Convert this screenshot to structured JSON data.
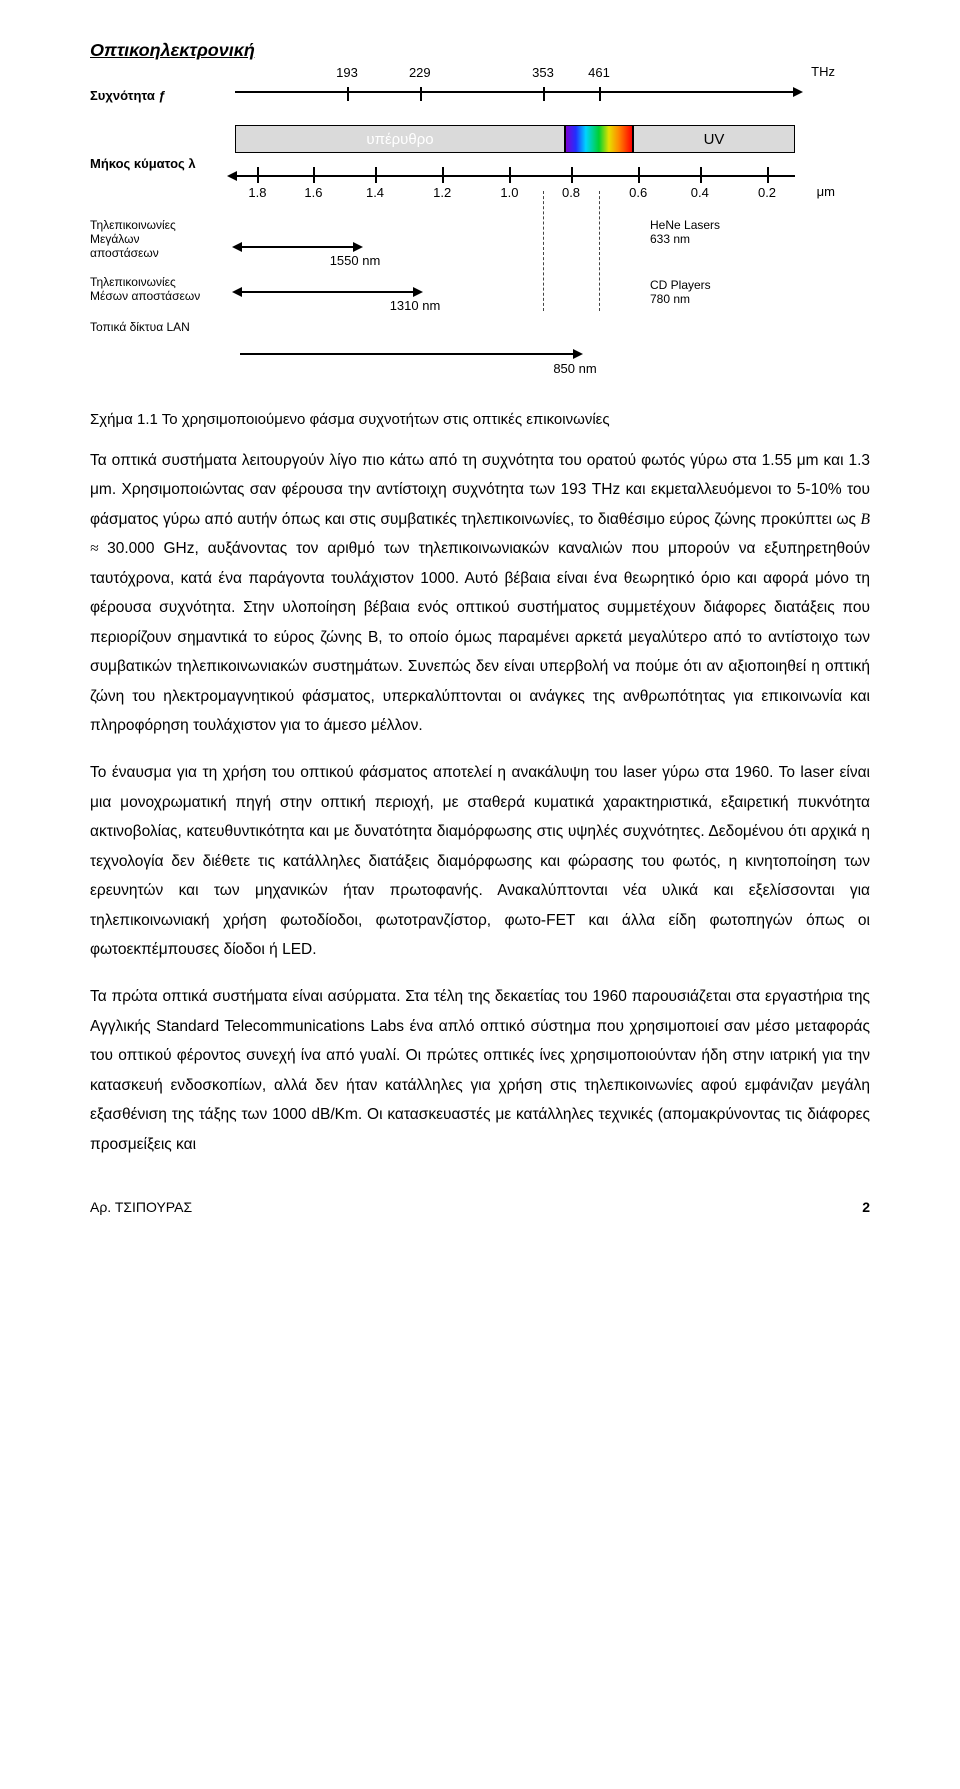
{
  "header": {
    "title": "Οπτικοηλεκτρονική"
  },
  "figure": {
    "freq_label": "Συχνότητα ƒ",
    "freq_unit": "THz",
    "freq_ticks": [
      {
        "pos_pct": 20,
        "label": "193"
      },
      {
        "pos_pct": 33,
        "label": "229"
      },
      {
        "pos_pct": 55,
        "label": "353"
      },
      {
        "pos_pct": 65,
        "label": "461"
      }
    ],
    "band_ir": "υπέρυθρο",
    "band_uv": "UV",
    "wl_label": "Μήκος κύματος λ",
    "wl_unit": "μm",
    "wl_ticks": [
      {
        "pos_pct": 4,
        "label": "1.8"
      },
      {
        "pos_pct": 14,
        "label": "1.6"
      },
      {
        "pos_pct": 25,
        "label": "1.4"
      },
      {
        "pos_pct": 37,
        "label": "1.2"
      },
      {
        "pos_pct": 49,
        "label": "1.0"
      },
      {
        "pos_pct": 60,
        "label": "0.8"
      },
      {
        "pos_pct": 72,
        "label": "0.6"
      },
      {
        "pos_pct": 83,
        "label": "0.4"
      },
      {
        "pos_pct": 95,
        "label": "0.2"
      }
    ],
    "cat1": "Τηλεπικοινωνίες\nΜεγάλων\nαποστάσεων",
    "cat2": "Τηλεπικοινωνίες\nΜέσων αποστάσεων",
    "cat3": "Τοπικά δίκτυα LAN",
    "range1_label": "1550 nm",
    "range2_label": "1310 nm",
    "range3_label": "850 nm",
    "hene_label": "HeNe Lasers\n633 nm",
    "cd_label": "CD Players\n780 nm",
    "guide_pos_pct": [
      55,
      65
    ]
  },
  "caption": "Σχήμα 1.1 Το χρησιμοποιούμενο φάσμα συχνοτήτων στις οπτικές επικοινωνίες",
  "paragraphs": {
    "p1a": "Τα οπτικά συστήματα λειτουργούν λίγο πιο κάτω από τη συχνότητα του ορατού φωτός γύρω στα 1.55 μm και 1.3 μm. Χρησιμοποιώντας σαν φέρουσα την αντίστοιχη συχνότητα των 193 THz και εκμεταλλευόμενοι το 5-10% του φάσματος γύρω από αυτήν όπως και στις συμβατικές τηλεπικοινωνίες, το διαθέσιμο εύρος ζώνης προκύπτει ως ",
    "p1_math": "B ≈ ",
    "p1b": "30.000 GHz, αυξάνοντας τον αριθμό των τηλεπικοινωνιακών καναλιών που μπορούν να εξυπηρετηθούν ταυτόχρονα, κατά ένα παράγοντα τουλάχιστον 1000. Αυτό βέβαια είναι ένα θεωρητικό όριο και αφορά μόνο τη φέρουσα συχνότητα. Στην υλοποίηση βέβαια ενός οπτικού συστήματος συμμετέχουν διάφορες διατάξεις που περιορίζουν σημαντικά το εύρος ζώνης B, το οποίο όμως παραμένει αρκετά μεγα­λύτερο από το αντίστοιχο των συμβατικών τηλεπικοινωνιακών συστημάτων. Συνεπώς δεν είναι υπερβολή να πούμε ότι αν αξιοποιηθεί η οπτική ζώνη του ηλεκτρομαγνητικού φάσματος, υπερκαλύπτονται οι ανάγκες της ανθρωπότητας για επικοινωνία και πληροφόρηση τουλάχιστον για το άμεσο μέλλον.",
    "p2": "Το έναυσμα για τη χρήση του οπτικού φάσματος αποτελεί η ανακάλυψη του laser γύρω στα 1960. Το laser είναι μια μονοχρωματική πηγή στην οπτική περιοχή, με σταθερά κυματικά χαρακτηριστικά, εξαιρετική πυκνότητα ακτινοβολίας, κατευθυντικό­τητα και με δυνατότητα διαμόρφωσης στις υψηλές συχνότητες. Δεδομένου ότι αρχικά η τεχνολογία δεν διέθετε τις κατάλληλες διατάξεις διαμόρφωσης και φώρασης του φωτός, η κινητοποίηση των ερευνητών και των μηχανικών ήταν πρωτοφανής. Ανακαλύπτονται νέα υλικά και εξελίσσονται για τηλεπικοινωνιακή χρήση φωτοδίοδοι, φωτοτρανζίστορ, φωτο-FET και άλλα είδη φωτοπηγών όπως οι φωτοεκπέμπουσες δίοδοι ή LED.",
    "p3": "Τα πρώτα οπτικά συστήματα είναι ασύρματα. Στα τέλη της δεκαετίας του 1960 παρουσιάζεται στα εργαστήρια της Αγγλικής Standard Telecommunications Labs ένα απλό οπτικό σύστημα που χρησιμοποιεί σαν μέσο μεταφοράς του οπτικού φέροντος συνεχή ίνα από γυαλί. Οι πρώτες οπτικές ίνες χρησιμοποιούνταν ήδη στην ιατρική για την κατασκευή ενδοσκοπίων, αλλά δεν ήταν κατάλληλες για χρήση στις τηλεπικοινωνίες αφού εμφάνιζαν μεγάλη εξασθένιση της τάξης των 1000 dB/Km. Οι κατασκευαστές με κατάλληλες τεχνικές (απομακρύνοντας τις διάφορες προσμείξεις και"
  },
  "footer": {
    "author": "Αρ. ΤΣΙΠΟΥΡΑΣ",
    "page": "2"
  }
}
